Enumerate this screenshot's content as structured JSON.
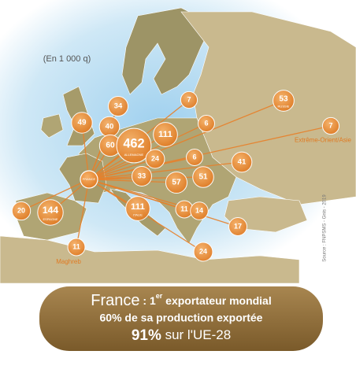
{
  "unit": "(En 1 000 q)",
  "origin": "FRANCE",
  "flows": [
    {
      "value": 34
    },
    {
      "value": 49
    },
    {
      "value": 40
    },
    {
      "value": 60
    },
    {
      "value": 462,
      "country": "ALLEMAGNE"
    },
    {
      "value": 111
    },
    {
      "value": 7
    },
    {
      "value": 53,
      "country": "RUSSIE"
    },
    {
      "value": 7,
      "destination": "Extrême-Orient/Asie"
    },
    {
      "value": 6
    },
    {
      "value": 6
    },
    {
      "value": 24
    },
    {
      "value": 41
    },
    {
      "value": 33
    },
    {
      "value": 51
    },
    {
      "value": 57
    },
    {
      "value": 20
    },
    {
      "value": 144,
      "country": "ESPAGNE"
    },
    {
      "value": 111,
      "country": "ITALIE"
    },
    {
      "value": 11
    },
    {
      "value": 14
    },
    {
      "value": 17
    },
    {
      "value": 11,
      "destination": "Maghreb"
    },
    {
      "value": 24
    }
  ],
  "source": "Source : FNPSMS - Gnis - 2019",
  "banner": {
    "line1": {
      "country": "France",
      "rank": " : 1",
      "sup": "er",
      "rest": " exportateur mondial"
    },
    "line2": "60% de sa production exportée",
    "line3": {
      "share": "91%",
      "rest": " sur l'UE-28"
    }
  }
}
